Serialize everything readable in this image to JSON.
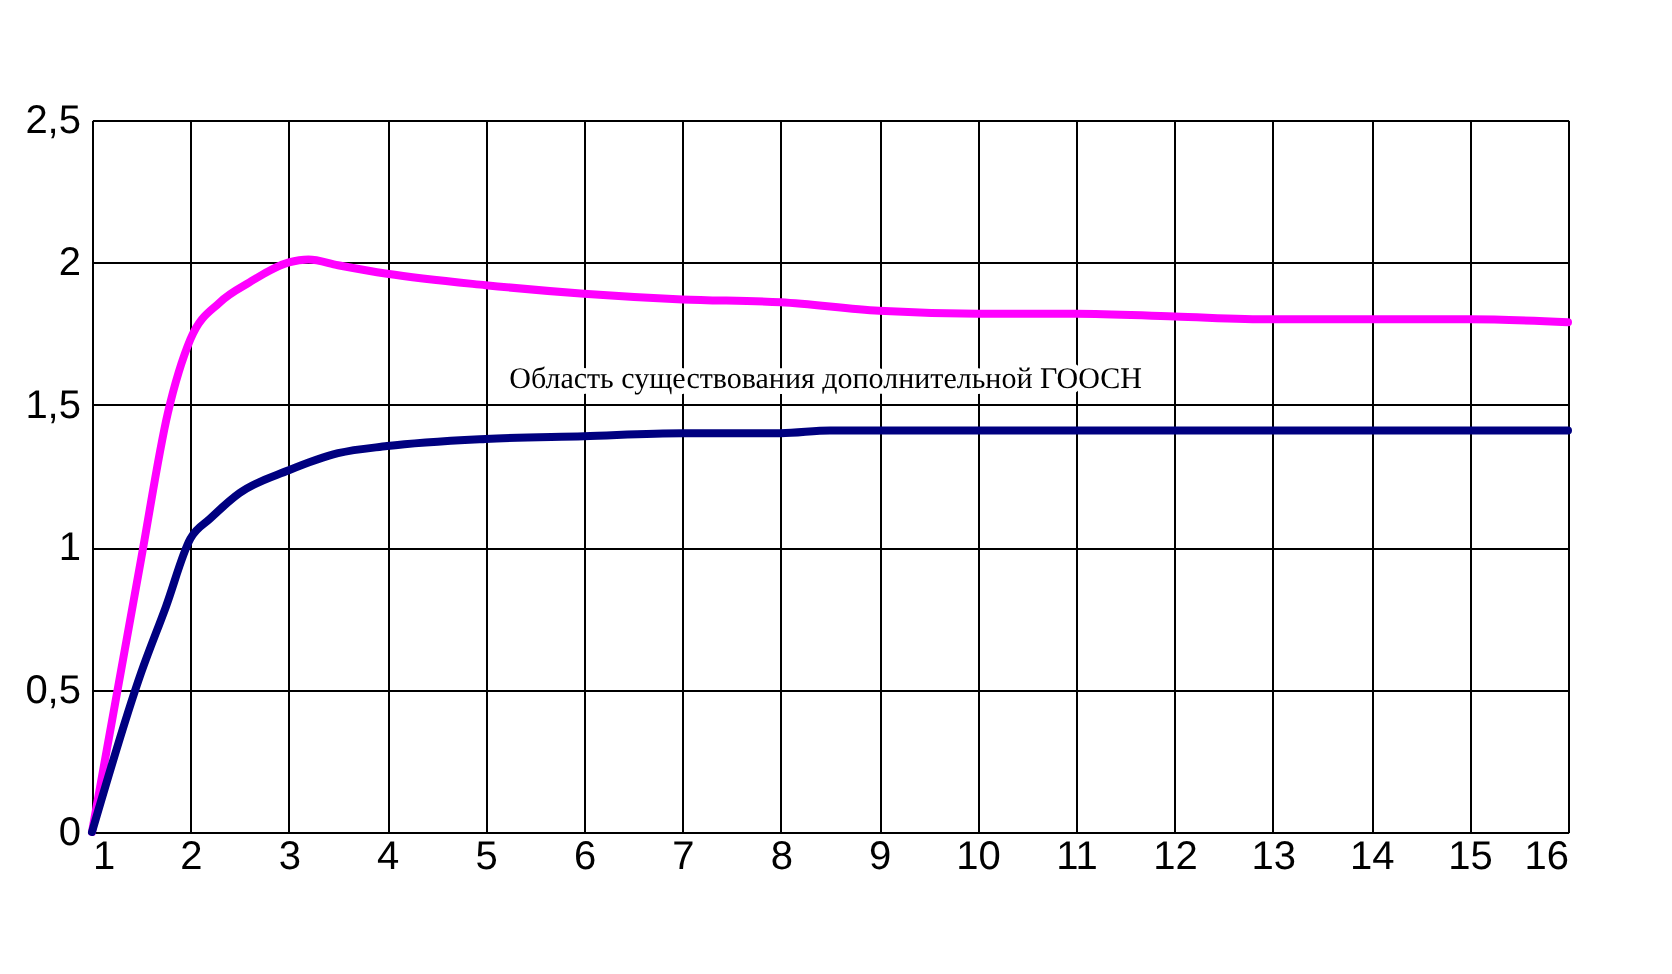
{
  "chart_data": {
    "type": "line",
    "annotations": [
      "Область существования дополнительной ГООСН"
    ],
    "series": [
      {
        "color": "#ff00ff",
        "x": [
          1,
          1.5,
          1.77,
          2,
          2.3,
          2.6,
          3,
          3.2,
          3.5,
          4,
          5,
          6,
          7,
          8,
          9,
          10,
          11,
          12,
          13,
          14,
          15,
          16
        ],
        "values": [
          0,
          0.96,
          1.47,
          1.73,
          1.86,
          1.93,
          2.0,
          2.01,
          1.99,
          1.96,
          1.92,
          1.89,
          1.87,
          1.86,
          1.83,
          1.82,
          1.82,
          1.81,
          1.8,
          1.8,
          1.8,
          1.79
        ]
      },
      {
        "color": "#000080",
        "x": [
          1,
          1.5,
          1.75,
          2,
          2.2,
          2.5,
          3,
          3.5,
          4,
          5,
          6,
          7,
          8,
          8.5,
          10,
          12,
          14,
          16
        ],
        "values": [
          0,
          0.56,
          0.79,
          1.03,
          1.1,
          1.19,
          1.27,
          1.33,
          1.355,
          1.38,
          1.39,
          1.4,
          1.4,
          1.41,
          1.41,
          1.41,
          1.41,
          1.41
        ]
      }
    ],
    "xlim": [
      1,
      16
    ],
    "xticks": [
      1,
      2,
      3,
      4,
      5,
      6,
      7,
      8,
      9,
      10,
      11,
      12,
      13,
      14,
      15,
      16
    ],
    "ylim": [
      0,
      2.5
    ],
    "yticks": [
      0,
      {
        "value": 0.5,
        "label": "0,5"
      },
      1,
      {
        "value": 1.5,
        "label": "1,5"
      },
      2,
      {
        "value": 2.5,
        "label": "2,5"
      }
    ],
    "grid": true,
    "line_style": "solid",
    "marker": "none"
  }
}
